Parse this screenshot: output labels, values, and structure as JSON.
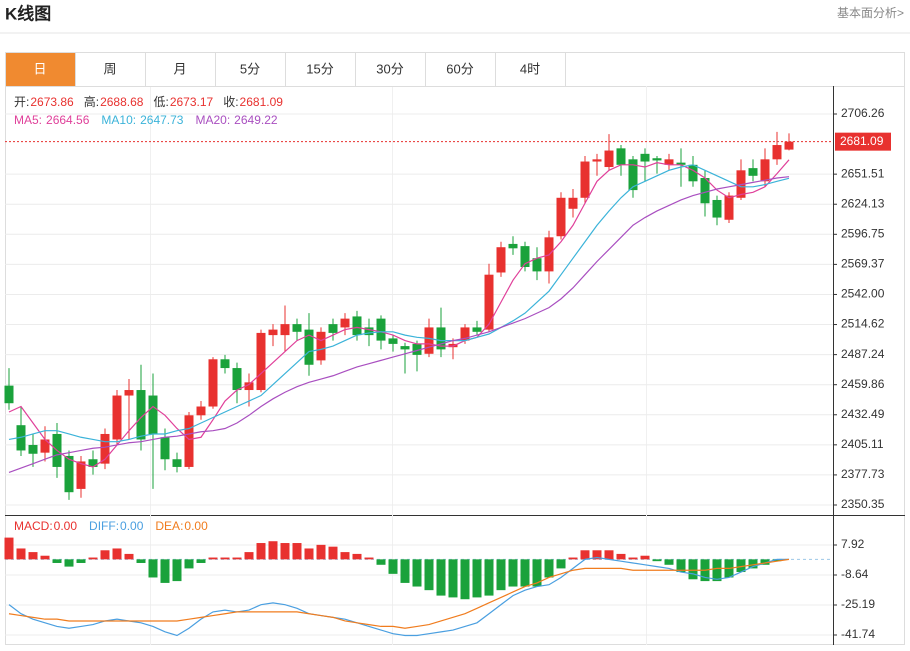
{
  "header": {
    "title": "K线图",
    "link": "基本面分析>"
  },
  "tabs": {
    "items": [
      "日",
      "周",
      "月",
      "5分",
      "15分",
      "30分",
      "60分",
      "4时"
    ],
    "active": 0
  },
  "chart_data": [
    {
      "type": "candlestick",
      "info": [
        {
          "label": "开:",
          "value": 2673.86
        },
        {
          "label": "高:",
          "value": 2688.68
        },
        {
          "label": "低:",
          "value": 2673.17
        },
        {
          "label": "收:",
          "value": 2681.09
        }
      ],
      "up_color": "#e8312f",
      "down_color": "#1aa23b",
      "ylim": [
        2341.25,
        2731.75
      ],
      "yticks": [
        2706.26,
        2651.51,
        2624.13,
        2596.75,
        2569.37,
        {
          "value": 2542,
          "label": "2542.00"
        },
        2514.62,
        2487.24,
        2459.86,
        2432.49,
        2405.11,
        2377.73,
        2350.35
      ],
      "grid": true,
      "last_price": 2681.09,
      "open": [
        2459,
        2423,
        2405,
        2398,
        2415,
        2395,
        2365,
        2392,
        2388,
        2410,
        2450,
        2455,
        2450,
        2412,
        2392,
        2385,
        2432,
        2440,
        2483,
        2475,
        2455,
        2455,
        2505,
        2505,
        2515,
        2510,
        2482,
        2515,
        2512,
        2522,
        2512,
        2520,
        2502,
        2495,
        2497,
        2488,
        2512,
        2494,
        2500,
        2512,
        2510,
        2562,
        2588,
        2586,
        2575,
        2563,
        2595,
        2620,
        2630,
        2663,
        2658,
        2675,
        2665,
        2670,
        2666,
        2660,
        2662,
        2660,
        2648,
        2628,
        2610,
        2630,
        2657,
        2645,
        2665,
        2673.86
      ],
      "high": [
        2475,
        2440,
        2415,
        2422,
        2425,
        2400,
        2395,
        2400,
        2420,
        2455,
        2465,
        2478,
        2470,
        2420,
        2398,
        2435,
        2445,
        2485,
        2487,
        2480,
        2470,
        2510,
        2515,
        2532,
        2520,
        2525,
        2512,
        2520,
        2525,
        2527,
        2520,
        2523,
        2505,
        2498,
        2500,
        2520,
        2530,
        2502,
        2515,
        2518,
        2570,
        2590,
        2595,
        2590,
        2585,
        2600,
        2635,
        2638,
        2668,
        2670,
        2688,
        2678,
        2668,
        2675,
        2668,
        2670,
        2675,
        2668,
        2655,
        2632,
        2635,
        2665,
        2665,
        2675,
        2690,
        2688.68
      ],
      "low": [
        2437,
        2395,
        2385,
        2390,
        2375,
        2355,
        2357,
        2378,
        2383,
        2405,
        2410,
        2400,
        2365,
        2382,
        2380,
        2383,
        2428,
        2438,
        2470,
        2443,
        2440,
        2453,
        2495,
        2490,
        2500,
        2468,
        2478,
        2500,
        2505,
        2500,
        2495,
        2492,
        2490,
        2470,
        2472,
        2485,
        2485,
        2483,
        2497,
        2505,
        2508,
        2558,
        2578,
        2563,
        2555,
        2552,
        2592,
        2612,
        2625,
        2650,
        2655,
        2650,
        2630,
        2645,
        2652,
        2655,
        2640,
        2640,
        2613,
        2605,
        2607,
        2628,
        2645,
        2640,
        2660,
        2673.17
      ],
      "close": [
        2443,
        2400,
        2397,
        2410,
        2385,
        2362,
        2390,
        2385,
        2415,
        2450,
        2455,
        2410,
        2415,
        2392,
        2385,
        2432,
        2440,
        2483,
        2475,
        2455,
        2462,
        2507,
        2510,
        2515,
        2508,
        2478,
        2508,
        2507,
        2520,
        2505,
        2505,
        2500,
        2497,
        2492,
        2487,
        2512,
        2492,
        2497,
        2512,
        2508,
        2560,
        2585,
        2584,
        2567,
        2563,
        2594,
        2630,
        2630,
        2663,
        2665,
        2673,
        2660,
        2637,
        2663,
        2664,
        2665,
        2660,
        2645,
        2625,
        2612,
        2632,
        2655,
        2650,
        2665,
        2678,
        2681.09
      ],
      "series": [
        {
          "label": "MA5:",
          "last": 2664.56,
          "color": "#e0409a",
          "values": [
            2435,
            2440,
            2425,
            2410,
            2400,
            2392,
            2388,
            2385,
            2392,
            2405,
            2418,
            2430,
            2440,
            2432,
            2420,
            2410,
            2412,
            2428,
            2445,
            2455,
            2460,
            2470,
            2480,
            2490,
            2500,
            2505,
            2500,
            2505,
            2510,
            2512,
            2510,
            2508,
            2505,
            2500,
            2497,
            2497,
            2495,
            2495,
            2500,
            2503,
            2515,
            2535,
            2555,
            2570,
            2575,
            2578,
            2590,
            2605,
            2625,
            2645,
            2655,
            2660,
            2660,
            2658,
            2662,
            2660,
            2660,
            2655,
            2648,
            2637,
            2630,
            2633,
            2635,
            2640,
            2652,
            2664.56
          ]
        },
        {
          "label": "MA10:",
          "last": 2647.73,
          "color": "#3bb3d9",
          "values": [
            2410,
            2412,
            2415,
            2418,
            2418,
            2415,
            2412,
            2410,
            2408,
            2408,
            2410,
            2413,
            2415,
            2415,
            2418,
            2420,
            2425,
            2430,
            2435,
            2440,
            2445,
            2450,
            2460,
            2470,
            2480,
            2490,
            2492,
            2495,
            2500,
            2505,
            2507,
            2508,
            2508,
            2505,
            2503,
            2502,
            2500,
            2500,
            2500,
            2503,
            2506,
            2512,
            2518,
            2525,
            2535,
            2545,
            2560,
            2575,
            2590,
            2605,
            2618,
            2630,
            2640,
            2645,
            2650,
            2655,
            2658,
            2660,
            2655,
            2650,
            2645,
            2640,
            2640,
            2642,
            2645,
            2647.73
          ]
        },
        {
          "label": "MA20:",
          "last": 2649.22,
          "color": "#a94fc0",
          "values": [
            2380,
            2384,
            2388,
            2392,
            2396,
            2398,
            2400,
            2402,
            2403,
            2405,
            2407,
            2408,
            2410,
            2412,
            2413,
            2415,
            2417,
            2418,
            2420,
            2425,
            2432,
            2440,
            2447,
            2453,
            2458,
            2462,
            2465,
            2468,
            2472,
            2476,
            2479,
            2482,
            2485,
            2488,
            2491,
            2494,
            2497,
            2500,
            2502,
            2505,
            2508,
            2512,
            2516,
            2520,
            2525,
            2530,
            2538,
            2548,
            2560,
            2572,
            2583,
            2594,
            2605,
            2612,
            2618,
            2623,
            2628,
            2632,
            2635,
            2638,
            2640,
            2642,
            2644,
            2646,
            2648,
            2649.22
          ]
        }
      ]
    },
    {
      "type": "macd",
      "ylim": [
        -47.81,
        24.47
      ],
      "yticks": [
        7.92,
        -8.64,
        -25.19,
        -41.74
      ],
      "grid": true,
      "histogram": {
        "label": "MACD:",
        "last": {
          "value": 0,
          "label": "0.00"
        },
        "color": "#e8312f",
        "up_color": "#e8312f",
        "down_color": "#1aa23b",
        "values": [
          12,
          6,
          4,
          2,
          -2,
          -4,
          -2,
          1,
          5,
          6,
          3,
          -2,
          -10,
          -13,
          -12,
          -5,
          -2,
          1,
          1,
          1,
          4,
          9,
          10,
          9,
          9,
          6,
          8,
          7,
          4,
          3,
          1,
          -3,
          -8,
          -13,
          -15,
          -17,
          -20,
          -21,
          -22,
          -21,
          -20,
          -17,
          -15,
          -15,
          -15,
          -10,
          -5,
          1,
          5,
          5,
          5,
          3,
          1,
          2,
          -1,
          -3,
          -7,
          -11,
          -12,
          -12,
          -10,
          -7,
          -5,
          -3,
          -1,
          0
        ]
      },
      "series": [
        {
          "label": "DIFF:",
          "last": {
            "value": 0,
            "label": "0.00"
          },
          "color": "#4a9fe0",
          "values": [
            -25,
            -30,
            -33,
            -35,
            -37,
            -38,
            -37,
            -36,
            -34,
            -33,
            -34,
            -35,
            -37,
            -40,
            -42,
            -38,
            -33,
            -29,
            -28,
            -29,
            -28,
            -25,
            -24,
            -25,
            -27,
            -30,
            -31,
            -32,
            -33,
            -35,
            -37,
            -39,
            -41,
            -42,
            -42,
            -41,
            -40,
            -39,
            -37,
            -35,
            -30,
            -25,
            -20,
            -17,
            -15,
            -14,
            -10,
            -5,
            0,
            1,
            0,
            -1,
            -2,
            -3,
            -4,
            -5,
            -7,
            -8,
            -10,
            -11,
            -10,
            -7,
            -4,
            -2,
            0,
            0
          ]
        },
        {
          "label": "DEA:",
          "last": {
            "value": 0,
            "label": "0.00"
          },
          "color": "#f07c1e",
          "values": [
            -30,
            -31,
            -32,
            -33,
            -33,
            -34,
            -34,
            -34,
            -34,
            -34,
            -34,
            -34,
            -34,
            -34,
            -34,
            -33,
            -32,
            -31,
            -30,
            -29,
            -29,
            -29,
            -29,
            -29,
            -29,
            -30,
            -31,
            -32,
            -34,
            -35,
            -36,
            -37,
            -37,
            -38,
            -37,
            -36,
            -34,
            -32,
            -30,
            -27,
            -24,
            -21,
            -18,
            -15,
            -13,
            -10,
            -8,
            -6,
            -5,
            -5,
            -5,
            -5,
            -6,
            -6,
            -6,
            -6,
            -6,
            -6,
            -6,
            -5,
            -5,
            -4,
            -3,
            -2,
            -1,
            0
          ]
        }
      ]
    }
  ]
}
